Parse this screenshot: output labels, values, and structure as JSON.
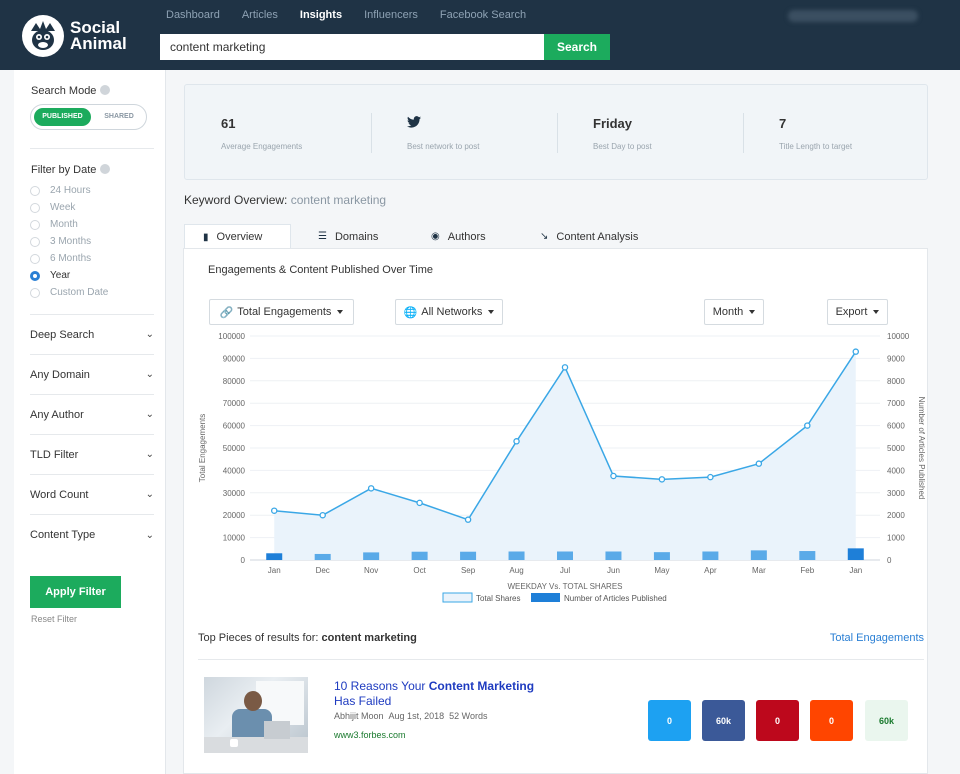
{
  "brand": {
    "line1": "Social",
    "line2": "Animal"
  },
  "nav": [
    "Dashboard",
    "Articles",
    "Insights",
    "Influencers",
    "Facebook Search"
  ],
  "search": {
    "value": "content marketing",
    "button": "Search"
  },
  "sidebar": {
    "search_mode_label": "Search Mode",
    "mode_on": "PUBLISHED",
    "mode_off": "SHARED",
    "filter_date_label": "Filter by Date",
    "date_options": [
      "24 Hours",
      "Week",
      "Month",
      "3 Months",
      "6 Months",
      "Year",
      "Custom Date"
    ],
    "selected_date": "Year",
    "dropdowns": [
      "Deep Search",
      "Any Domain",
      "Any Author",
      "TLD Filter",
      "Word Count",
      "Content Type"
    ],
    "apply_label": "Apply Filter",
    "reset_label": "Reset Filter"
  },
  "stats": [
    {
      "value": "61",
      "label": "Average Engagements"
    },
    {
      "value": "",
      "label": "Best network to post",
      "icon": "twitter-icon"
    },
    {
      "value": "Friday",
      "label": "Best Day to post"
    },
    {
      "value": "7",
      "label": "Title Length to target"
    }
  ],
  "keyword": {
    "prefix": "Keyword Overview:",
    "value": "content marketing"
  },
  "tabs": [
    "Overview",
    "Domains",
    "Authors",
    "Content  Analysis"
  ],
  "panel": {
    "title": "Engagements & Content Published Over Time",
    "selects": {
      "metric": "Total Engagements",
      "networks": "All Networks",
      "period": "Month",
      "export": "Export"
    }
  },
  "chart_data": {
    "type": "line",
    "categories": [
      "Jan",
      "Dec",
      "Nov",
      "Oct",
      "Sep",
      "Aug",
      "Jul",
      "Jun",
      "May",
      "Apr",
      "Mar",
      "Feb",
      "Jan"
    ],
    "series": [
      {
        "name": "Total Shares",
        "type": "area",
        "axis": "left",
        "values": [
          22000,
          20000,
          32000,
          25500,
          18000,
          53000,
          86000,
          37500,
          36000,
          37000,
          43000,
          60000,
          93000
        ]
      },
      {
        "name": "Number of Articles Published",
        "type": "bar",
        "axis": "right",
        "values": [
          300,
          270,
          340,
          370,
          370,
          380,
          380,
          380,
          350,
          380,
          430,
          400,
          520
        ]
      }
    ],
    "ylabel": "Total Engagements",
    "y2label": "Number of Articles Published",
    "xlabel": "WEEKDAY Vs. TOTAL SHARES",
    "ylim": [
      0,
      100000
    ],
    "y2lim": [
      0,
      10000
    ],
    "yticks": [
      "100000",
      "90000",
      "80000",
      "70000",
      "60000",
      "50000",
      "40000",
      "30000",
      "20000",
      "10000",
      "0"
    ],
    "y2ticks": [
      "10000",
      "9000",
      "8000",
      "7000",
      "6000",
      "5000",
      "4000",
      "3000",
      "2000",
      "1000",
      "0"
    ],
    "colors": {
      "line": "#3aa7e6",
      "area": "#eaf3fb",
      "bar": "#5aaae8",
      "bar_last": "#1e7fd8"
    }
  },
  "top_pieces": {
    "prefix": "Top Pieces of results for:",
    "keyword": "content marketing",
    "sort_label": "Total Engagements",
    "article": {
      "title_a": "10 Reasons Your ",
      "title_b": "Content Marketing",
      "title_c": "Has Failed",
      "author": "Abhijit Moon",
      "date": "Aug 1st, 2018",
      "words": "52 Words",
      "domain": "www3.forbes.com",
      "counts": [
        {
          "network": "twitter",
          "value": "0",
          "color": "#1da1f2"
        },
        {
          "network": "facebook",
          "value": "60k",
          "color": "#3b5998"
        },
        {
          "network": "pinterest",
          "value": "0",
          "color": "#bd081c"
        },
        {
          "network": "reddit",
          "value": "0",
          "color": "#ff4500"
        },
        {
          "network": "total",
          "value": "60k",
          "color": "#eaf6ee"
        }
      ]
    }
  }
}
